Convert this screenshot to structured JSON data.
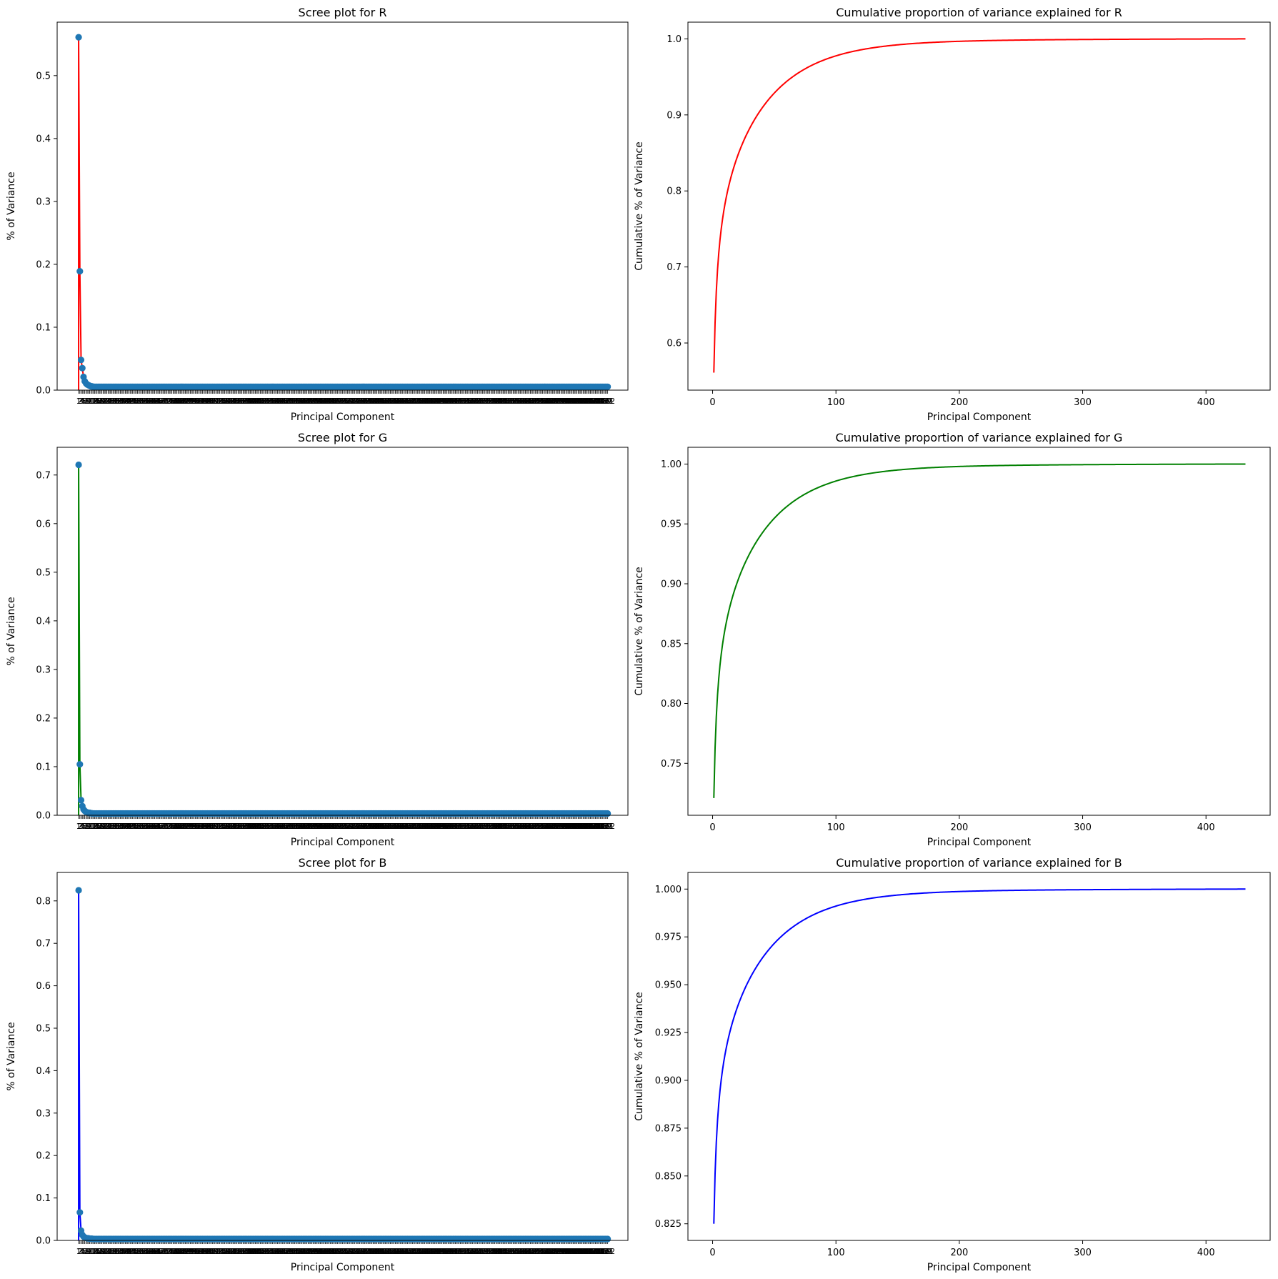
{
  "figure": {
    "background": "#ffffff",
    "marker_color": "#1f77b4"
  },
  "chart_data": [
    {
      "id": "scree-r",
      "type": "line",
      "subtype": "scree-stem",
      "title": "Scree plot for R",
      "xlabel": "Principal Component",
      "ylabel": "% of Variance",
      "line_color": "#ff0000",
      "n_components": 432,
      "ylim": [
        0,
        0.585
      ],
      "yticks": [
        0.0,
        0.1,
        0.2,
        0.3,
        0.4,
        0.5
      ],
      "ytick_labels": [
        "0.0",
        "0.1",
        "0.2",
        "0.3",
        "0.4",
        "0.5"
      ],
      "head_values": [
        0.561,
        0.189,
        0.048,
        0.035,
        0.021,
        0.014,
        0.011,
        0.009,
        0.008,
        0.007,
        0.006,
        0.006
      ],
      "tail": {
        "from": 0.0055,
        "to": 0.0,
        "decay": 40
      },
      "grid": false,
      "legend": "none"
    },
    {
      "id": "cum-r",
      "type": "line",
      "title": "Cumulative proportion of variance explained for R",
      "xlabel": "Principal Component",
      "ylabel": "Cumulative % of Variance",
      "line_color": "#ff0000",
      "n_components": 432,
      "xlim": [
        -20,
        452
      ],
      "xticks": [
        0,
        100,
        200,
        300,
        400
      ],
      "xtick_labels": [
        "0",
        "100",
        "200",
        "300",
        "400"
      ],
      "ylim": [
        0.538,
        1.022
      ],
      "yticks": [
        0.6,
        0.7,
        0.8,
        0.9,
        1.0
      ],
      "ytick_labels": [
        "0.6",
        "0.7",
        "0.8",
        "0.9",
        "1.0"
      ],
      "start": 0.561,
      "end": 1.0,
      "grid": false,
      "legend": "none"
    },
    {
      "id": "scree-g",
      "type": "line",
      "subtype": "scree-stem",
      "title": "Scree plot for G",
      "xlabel": "Principal Component",
      "ylabel": "% of Variance",
      "line_color": "#008000",
      "n_components": 432,
      "ylim": [
        0,
        0.757
      ],
      "yticks": [
        0.0,
        0.1,
        0.2,
        0.3,
        0.4,
        0.5,
        0.6,
        0.7
      ],
      "ytick_labels": [
        "0.0",
        "0.1",
        "0.2",
        "0.3",
        "0.4",
        "0.5",
        "0.6",
        "0.7"
      ],
      "head_values": [
        0.721,
        0.105,
        0.031,
        0.019,
        0.012,
        0.009,
        0.007,
        0.006,
        0.005,
        0.005,
        0.004,
        0.004
      ],
      "tail": {
        "from": 0.0038,
        "to": 0.0,
        "decay": 40
      },
      "grid": false,
      "legend": "none"
    },
    {
      "id": "cum-g",
      "type": "line",
      "title": "Cumulative proportion of variance explained for G",
      "xlabel": "Principal Component",
      "ylabel": "Cumulative % of Variance",
      "line_color": "#008000",
      "n_components": 432,
      "xlim": [
        -20,
        452
      ],
      "xticks": [
        0,
        100,
        200,
        300,
        400
      ],
      "xtick_labels": [
        "0",
        "100",
        "200",
        "300",
        "400"
      ],
      "ylim": [
        0.7066,
        1.014
      ],
      "yticks": [
        0.75,
        0.8,
        0.85,
        0.9,
        0.95,
        1.0
      ],
      "ytick_labels": [
        "0.75",
        "0.80",
        "0.85",
        "0.90",
        "0.95",
        "1.00"
      ],
      "start": 0.721,
      "end": 1.0,
      "grid": false,
      "legend": "none"
    },
    {
      "id": "scree-b",
      "type": "line",
      "subtype": "scree-stem",
      "title": "Scree plot for B",
      "xlabel": "Principal Component",
      "ylabel": "% of Variance",
      "line_color": "#0000ff",
      "n_components": 432,
      "ylim": [
        0,
        0.867
      ],
      "yticks": [
        0.0,
        0.1,
        0.2,
        0.3,
        0.4,
        0.5,
        0.6,
        0.7,
        0.8
      ],
      "ytick_labels": [
        "0.0",
        "0.1",
        "0.2",
        "0.3",
        "0.4",
        "0.5",
        "0.6",
        "0.7",
        "0.8"
      ],
      "head_values": [
        0.825,
        0.066,
        0.023,
        0.013,
        0.009,
        0.007,
        0.006,
        0.005,
        0.005,
        0.004,
        0.004,
        0.004
      ],
      "tail": {
        "from": 0.0035,
        "to": 0.0,
        "decay": 40
      },
      "grid": false,
      "legend": "none"
    },
    {
      "id": "cum-b",
      "type": "line",
      "title": "Cumulative proportion of variance explained for B",
      "xlabel": "Principal Component",
      "ylabel": "Cumulative % of Variance",
      "line_color": "#0000ff",
      "n_components": 432,
      "xlim": [
        -20,
        452
      ],
      "xticks": [
        0,
        100,
        200,
        300,
        400
      ],
      "xtick_labels": [
        "0",
        "100",
        "200",
        "300",
        "400"
      ],
      "ylim": [
        0.8163,
        1.0087
      ],
      "yticks": [
        0.825,
        0.85,
        0.875,
        0.9,
        0.925,
        0.95,
        0.975,
        1.0
      ],
      "ytick_labels": [
        "0.825",
        "0.850",
        "0.875",
        "0.900",
        "0.925",
        "0.950",
        "0.975",
        "1.000"
      ],
      "start": 0.825,
      "end": 1.0,
      "grid": false,
      "legend": "none"
    }
  ]
}
